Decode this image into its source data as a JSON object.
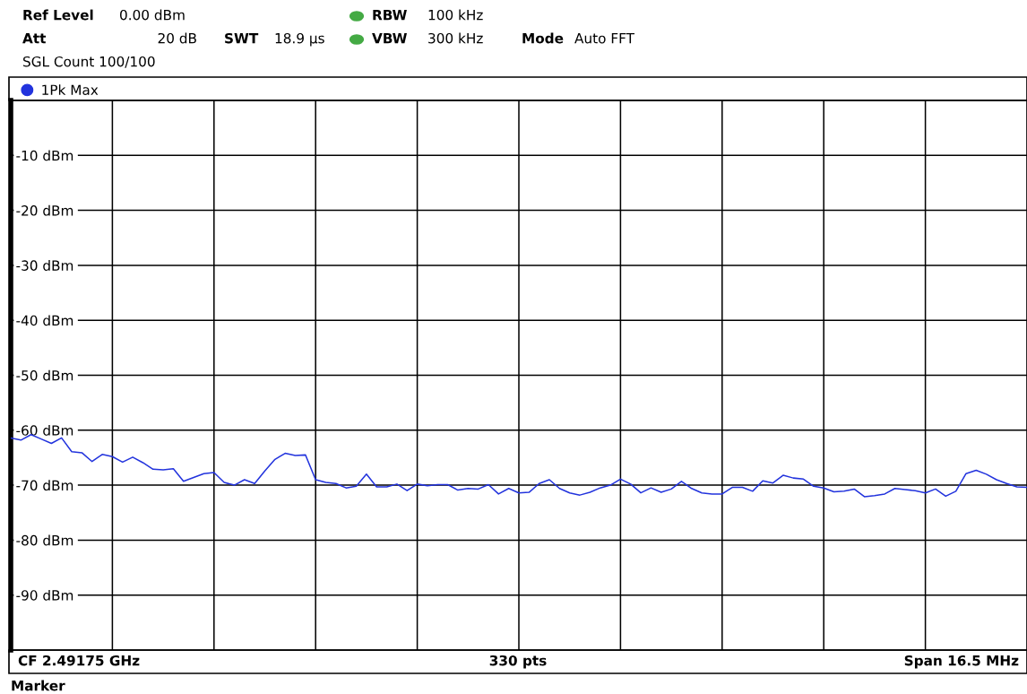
{
  "chart_data": {
    "type": "line",
    "categories": [
      null,
      null,
      null,
      null,
      null,
      null,
      null,
      null,
      null,
      null,
      null,
      null,
      null,
      null,
      null,
      null,
      null,
      null,
      null,
      null,
      null,
      null,
      null,
      null,
      null,
      null,
      null,
      null,
      null,
      null,
      null,
      null,
      null,
      null,
      null,
      null,
      null,
      null,
      null,
      null,
      null,
      null,
      null,
      null,
      null,
      null,
      null,
      null,
      null,
      null,
      null,
      null,
      null,
      null,
      null,
      null,
      null,
      null,
      null,
      null,
      null,
      null,
      null,
      null,
      null,
      null,
      null,
      null,
      null,
      null,
      null,
      null,
      null,
      null,
      null,
      null,
      null,
      null,
      null,
      null,
      null,
      null,
      null,
      null,
      null,
      null,
      null,
      null,
      null,
      null,
      null,
      null,
      null,
      null,
      null,
      null,
      null,
      null,
      null,
      null,
      null
    ],
    "series": [
      {
        "name": "1Pk Max",
        "color": "#2233dd",
        "values": [
          -61.4,
          -61.8,
          -60.8,
          -61.6,
          -62.4,
          -61.4,
          -63.9,
          -64.1,
          -65.7,
          -64.4,
          -64.8,
          -65.8,
          -64.9,
          -65.9,
          -67.1,
          -67.2,
          -67.0,
          -69.3,
          -68.6,
          -67.9,
          -67.7,
          -69.5,
          -70.0,
          -69.0,
          -69.7,
          -67.4,
          -65.3,
          -64.2,
          -64.6,
          -64.5,
          -69.0,
          -69.5,
          -69.7,
          -70.5,
          -70.2,
          -68.0,
          -70.3,
          -70.3,
          -69.8,
          -71.0,
          -69.8,
          -70.1,
          -69.9,
          -69.9,
          -70.9,
          -70.6,
          -70.7,
          -69.9,
          -71.6,
          -70.6,
          -71.4,
          -71.3,
          -69.7,
          -69.0,
          -70.6,
          -71.4,
          -71.8,
          -71.3,
          -70.5,
          -70.0,
          -68.9,
          -69.8,
          -71.4,
          -70.5,
          -71.3,
          -70.7,
          -69.3,
          -70.6,
          -71.4,
          -71.6,
          -71.6,
          -70.4,
          -70.4,
          -71.1,
          -69.2,
          -69.6,
          -68.2,
          -68.7,
          -68.9,
          -70.2,
          -70.5,
          -71.2,
          -71.1,
          -70.7,
          -72.1,
          -71.9,
          -71.6,
          -70.6,
          -70.8,
          -71.0,
          -71.4,
          -70.7,
          -72.0,
          -71.1,
          -67.9,
          -67.3,
          -68.0,
          -69.0,
          -69.7,
          -70.3,
          -70.4
        ]
      }
    ],
    "ylim": [
      -100,
      0
    ],
    "yticks": [
      {
        "value": -10,
        "label": "-10 dBm"
      },
      {
        "value": -20,
        "label": "-20 dBm"
      },
      {
        "value": -30,
        "label": "-30 dBm"
      },
      {
        "value": -40,
        "label": "-40 dBm"
      },
      {
        "value": -50,
        "label": "-50 dBm"
      },
      {
        "value": -60,
        "label": "-60 dBm"
      },
      {
        "value": -70,
        "label": "-70 dBm"
      },
      {
        "value": -80,
        "label": "-80 dBm"
      },
      {
        "value": -90,
        "label": "-90 dBm"
      }
    ],
    "grid": true,
    "legend": "top left",
    "marker": "none",
    "line_style": "solid",
    "annotations": [
      "Ref Level",
      "0.00 dBm",
      "Att",
      "20 dB",
      "SWT",
      "18.9 µs",
      "RBW",
      "100 kHz",
      "VBW",
      "300 kHz",
      "Mode",
      "Auto FFT",
      "SGL Count 100/100",
      "CF 2.49175 GHz",
      "330 pts",
      "Span 16.5 MHz",
      "Marker"
    ]
  }
}
